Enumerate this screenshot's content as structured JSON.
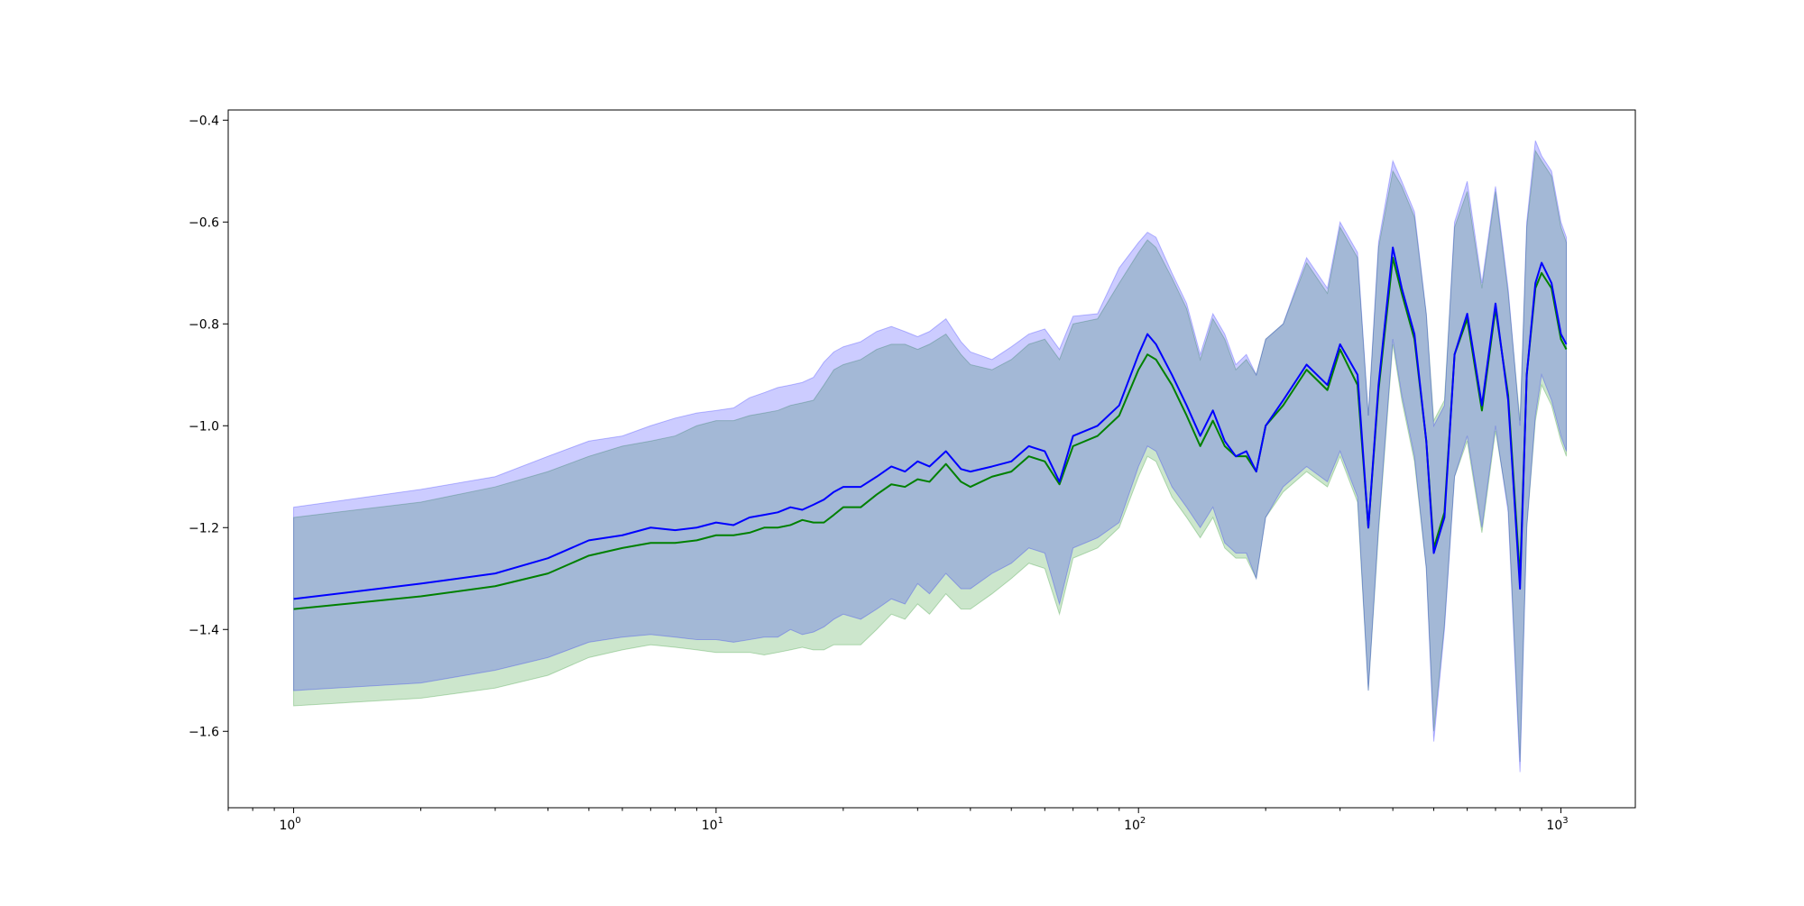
{
  "chart_data": {
    "type": "line",
    "title": "",
    "xlabel": "",
    "ylabel": "",
    "xscale": "log",
    "xlim": [
      0.7,
      1500
    ],
    "ylim": [
      -1.75,
      -0.38
    ],
    "grid": false,
    "legend": "none",
    "x_ticks": [
      {
        "value": 1,
        "base": "10",
        "exp": "0"
      },
      {
        "value": 10,
        "base": "10",
        "exp": "1"
      },
      {
        "value": 100,
        "base": "10",
        "exp": "2"
      },
      {
        "value": 1000,
        "base": "10",
        "exp": "3"
      }
    ],
    "y_ticks": [
      {
        "value": -0.4,
        "label": "−0.4"
      },
      {
        "value": -0.6,
        "label": "−0.6"
      },
      {
        "value": -0.8,
        "label": "−0.8"
      },
      {
        "value": -1.0,
        "label": "−1.0"
      },
      {
        "value": -1.2,
        "label": "−1.2"
      },
      {
        "value": -1.4,
        "label": "−1.4"
      },
      {
        "value": -1.6,
        "label": "−1.6"
      }
    ],
    "series": [
      {
        "color": "#0000ff",
        "band_color": "#0000ff",
        "band_opacity": 0.2,
        "x": [
          1,
          2,
          3,
          4,
          5,
          6,
          7,
          8,
          9,
          10,
          11,
          12,
          13,
          14,
          15,
          16,
          17,
          18,
          19,
          20,
          22,
          24,
          26,
          28,
          30,
          32,
          35,
          38,
          40,
          45,
          50,
          55,
          60,
          65,
          70,
          80,
          90,
          100,
          105,
          110,
          120,
          130,
          140,
          150,
          160,
          170,
          180,
          190,
          200,
          220,
          250,
          280,
          300,
          330,
          350,
          370,
          400,
          420,
          450,
          480,
          500,
          530,
          560,
          600,
          650,
          700,
          750,
          800,
          830,
          870,
          900,
          950,
          1000,
          1030
        ],
        "y": [
          -1.34,
          -1.31,
          -1.29,
          -1.26,
          -1.225,
          -1.215,
          -1.2,
          -1.205,
          -1.2,
          -1.19,
          -1.195,
          -1.18,
          -1.175,
          -1.17,
          -1.16,
          -1.165,
          -1.155,
          -1.145,
          -1.13,
          -1.12,
          -1.12,
          -1.1,
          -1.08,
          -1.09,
          -1.07,
          -1.08,
          -1.05,
          -1.085,
          -1.09,
          -1.08,
          -1.07,
          -1.04,
          -1.05,
          -1.11,
          -1.02,
          -1.0,
          -0.96,
          -0.86,
          -0.82,
          -0.84,
          -0.9,
          -0.96,
          -1.02,
          -0.97,
          -1.03,
          -1.06,
          -1.05,
          -1.09,
          -1.0,
          -0.95,
          -0.88,
          -0.92,
          -0.84,
          -0.9,
          -1.2,
          -0.92,
          -0.65,
          -0.73,
          -0.82,
          -1.03,
          -1.25,
          -1.18,
          -0.86,
          -0.78,
          -0.96,
          -0.76,
          -0.95,
          -1.32,
          -0.9,
          -0.72,
          -0.68,
          -0.72,
          -0.82,
          -0.84
        ],
        "upper": [
          -1.16,
          -1.125,
          -1.1,
          -1.06,
          -1.03,
          -1.02,
          -1.0,
          -0.985,
          -0.975,
          -0.97,
          -0.965,
          -0.945,
          -0.935,
          -0.925,
          -0.92,
          -0.915,
          -0.905,
          -0.875,
          -0.855,
          -0.845,
          -0.835,
          -0.815,
          -0.805,
          -0.815,
          -0.825,
          -0.815,
          -0.79,
          -0.835,
          -0.855,
          -0.87,
          -0.845,
          -0.82,
          -0.81,
          -0.85,
          -0.785,
          -0.78,
          -0.69,
          -0.64,
          -0.62,
          -0.63,
          -0.7,
          -0.76,
          -0.86,
          -0.78,
          -0.82,
          -0.88,
          -0.86,
          -0.9,
          -0.83,
          -0.8,
          -0.67,
          -0.73,
          -0.6,
          -0.66,
          -0.98,
          -0.64,
          -0.48,
          -0.52,
          -0.58,
          -0.78,
          -1.0,
          -0.96,
          -0.6,
          -0.52,
          -0.72,
          -0.53,
          -0.73,
          -1.0,
          -0.6,
          -0.44,
          -0.47,
          -0.5,
          -0.6,
          -0.63
        ],
        "lower": [
          -1.52,
          -1.505,
          -1.48,
          -1.455,
          -1.425,
          -1.415,
          -1.41,
          -1.415,
          -1.42,
          -1.42,
          -1.425,
          -1.42,
          -1.415,
          -1.415,
          -1.4,
          -1.41,
          -1.405,
          -1.395,
          -1.38,
          -1.37,
          -1.38,
          -1.36,
          -1.34,
          -1.35,
          -1.31,
          -1.33,
          -1.29,
          -1.32,
          -1.32,
          -1.29,
          -1.27,
          -1.24,
          -1.25,
          -1.35,
          -1.24,
          -1.22,
          -1.19,
          -1.08,
          -1.04,
          -1.05,
          -1.12,
          -1.16,
          -1.2,
          -1.16,
          -1.23,
          -1.25,
          -1.25,
          -1.3,
          -1.18,
          -1.12,
          -1.08,
          -1.11,
          -1.05,
          -1.14,
          -1.52,
          -1.2,
          -0.83,
          -0.94,
          -1.06,
          -1.28,
          -1.62,
          -1.4,
          -1.1,
          -1.02,
          -1.2,
          -1.0,
          -1.17,
          -1.68,
          -1.2,
          -0.98,
          -0.9,
          -0.95,
          -1.02,
          -1.05
        ]
      },
      {
        "color": "#008000",
        "band_color": "#008000",
        "band_opacity": 0.2,
        "x": [
          1,
          2,
          3,
          4,
          5,
          6,
          7,
          8,
          9,
          10,
          11,
          12,
          13,
          14,
          15,
          16,
          17,
          18,
          19,
          20,
          22,
          24,
          26,
          28,
          30,
          32,
          35,
          38,
          40,
          45,
          50,
          55,
          60,
          65,
          70,
          80,
          90,
          100,
          105,
          110,
          120,
          130,
          140,
          150,
          160,
          170,
          180,
          190,
          200,
          220,
          250,
          280,
          300,
          330,
          350,
          370,
          400,
          420,
          450,
          480,
          500,
          530,
          560,
          600,
          650,
          700,
          750,
          800,
          830,
          870,
          900,
          950,
          1000,
          1030
        ],
        "y": [
          -1.36,
          -1.335,
          -1.315,
          -1.29,
          -1.255,
          -1.24,
          -1.23,
          -1.23,
          -1.225,
          -1.215,
          -1.215,
          -1.21,
          -1.2,
          -1.2,
          -1.195,
          -1.185,
          -1.19,
          -1.19,
          -1.175,
          -1.16,
          -1.16,
          -1.135,
          -1.115,
          -1.12,
          -1.105,
          -1.11,
          -1.075,
          -1.11,
          -1.12,
          -1.1,
          -1.09,
          -1.06,
          -1.07,
          -1.115,
          -1.04,
          -1.02,
          -0.98,
          -0.89,
          -0.86,
          -0.87,
          -0.92,
          -0.98,
          -1.04,
          -0.99,
          -1.04,
          -1.06,
          -1.06,
          -1.09,
          -1.0,
          -0.96,
          -0.89,
          -0.93,
          -0.85,
          -0.92,
          -1.2,
          -0.93,
          -0.67,
          -0.74,
          -0.83,
          -1.03,
          -1.24,
          -1.17,
          -0.86,
          -0.79,
          -0.97,
          -0.77,
          -0.94,
          -1.3,
          -0.9,
          -0.73,
          -0.7,
          -0.73,
          -0.83,
          -0.85
        ],
        "upper": [
          -1.18,
          -1.15,
          -1.12,
          -1.09,
          -1.06,
          -1.04,
          -1.03,
          -1.02,
          -1.0,
          -0.99,
          -0.99,
          -0.98,
          -0.975,
          -0.97,
          -0.96,
          -0.955,
          -0.95,
          -0.92,
          -0.89,
          -0.88,
          -0.87,
          -0.85,
          -0.84,
          -0.84,
          -0.85,
          -0.84,
          -0.82,
          -0.86,
          -0.88,
          -0.89,
          -0.87,
          -0.84,
          -0.83,
          -0.87,
          -0.8,
          -0.79,
          -0.72,
          -0.66,
          -0.635,
          -0.65,
          -0.71,
          -0.77,
          -0.87,
          -0.79,
          -0.83,
          -0.89,
          -0.87,
          -0.9,
          -0.83,
          -0.8,
          -0.68,
          -0.74,
          -0.61,
          -0.67,
          -0.98,
          -0.65,
          -0.5,
          -0.53,
          -0.59,
          -0.78,
          -0.99,
          -0.95,
          -0.61,
          -0.54,
          -0.73,
          -0.54,
          -0.74,
          -0.99,
          -0.61,
          -0.46,
          -0.48,
          -0.51,
          -0.61,
          -0.64
        ],
        "lower": [
          -1.55,
          -1.535,
          -1.515,
          -1.49,
          -1.455,
          -1.44,
          -1.43,
          -1.435,
          -1.44,
          -1.445,
          -1.445,
          -1.445,
          -1.45,
          -1.445,
          -1.44,
          -1.435,
          -1.44,
          -1.44,
          -1.43,
          -1.43,
          -1.43,
          -1.4,
          -1.37,
          -1.38,
          -1.35,
          -1.37,
          -1.33,
          -1.36,
          -1.36,
          -1.33,
          -1.3,
          -1.27,
          -1.28,
          -1.37,
          -1.26,
          -1.24,
          -1.2,
          -1.1,
          -1.06,
          -1.07,
          -1.14,
          -1.18,
          -1.22,
          -1.18,
          -1.24,
          -1.26,
          -1.26,
          -1.3,
          -1.18,
          -1.13,
          -1.09,
          -1.12,
          -1.06,
          -1.15,
          -1.52,
          -1.21,
          -0.84,
          -0.95,
          -1.07,
          -1.28,
          -1.6,
          -1.39,
          -1.1,
          -1.03,
          -1.21,
          -1.01,
          -1.16,
          -1.66,
          -1.2,
          -0.99,
          -0.92,
          -0.96,
          -1.03,
          -1.06
        ]
      }
    ]
  }
}
